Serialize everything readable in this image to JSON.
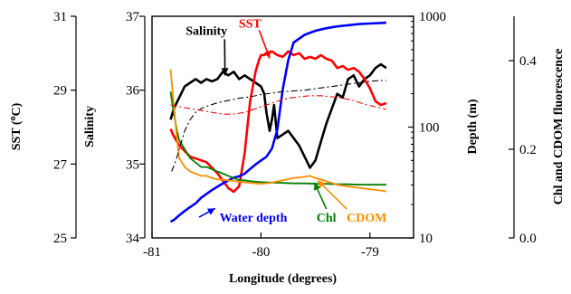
{
  "chart_data": {
    "type": "line",
    "xlabel": "Longitude (degrees)",
    "xlim": [
      -81,
      -78.6
    ],
    "x_ticks": [
      -81,
      -80,
      -79
    ],
    "x_tick_labels": [
      "-81",
      "-80",
      "-79"
    ],
    "axes": {
      "sst": {
        "label": "SST (°C)",
        "label_main": "SST (",
        "label_sup": "o",
        "label_end": "C)",
        "lim": [
          25,
          31
        ],
        "ticks": [
          25,
          27,
          29,
          31
        ],
        "tick_labels": [
          "25",
          "27",
          "29",
          "31"
        ]
      },
      "salinity": {
        "label": "Salinity",
        "lim": [
          34,
          37
        ],
        "ticks": [
          34,
          35,
          36,
          37
        ],
        "tick_labels": [
          "34",
          "35",
          "36",
          "37"
        ]
      },
      "depth": {
        "label": "Depth (m)",
        "scale": "log",
        "lim": [
          10,
          1000
        ],
        "ticks": [
          10,
          100,
          1000
        ],
        "tick_labels": [
          "10",
          "100",
          "1000"
        ]
      },
      "fluorescence": {
        "label": "Chl and CDOM fluorescence",
        "lim": [
          0,
          0.5
        ],
        "ticks": [
          0,
          0.2,
          0.4
        ],
        "tick_labels": [
          "0.0",
          "0.2",
          "0.4"
        ]
      }
    },
    "series": [
      {
        "name": "Salinity",
        "axis": "salinity",
        "color": "#000000",
        "style": "solid",
        "x": [
          -80.83,
          -80.8,
          -80.75,
          -80.7,
          -80.65,
          -80.6,
          -80.55,
          -80.5,
          -80.45,
          -80.4,
          -80.35,
          -80.3,
          -80.25,
          -80.2,
          -80.15,
          -80.1,
          -80.05,
          -80.0,
          -79.97,
          -79.95,
          -79.92,
          -79.9,
          -79.88,
          -79.85,
          -79.8,
          -79.75,
          -79.7,
          -79.65,
          -79.6,
          -79.55,
          -79.5,
          -79.45,
          -79.4,
          -79.35,
          -79.3,
          -79.25,
          -79.2,
          -79.15,
          -79.1,
          -79.05,
          -79.0,
          -78.95,
          -78.9,
          -78.85
        ],
        "y": [
          35.6,
          35.75,
          35.9,
          36.05,
          36.1,
          36.15,
          36.1,
          36.15,
          36.12,
          36.15,
          36.25,
          36.2,
          36.25,
          36.15,
          36.2,
          36.15,
          36.1,
          36.05,
          35.95,
          35.7,
          35.45,
          35.6,
          35.8,
          35.35,
          35.4,
          35.45,
          35.35,
          35.25,
          35.1,
          34.95,
          35.05,
          35.3,
          35.55,
          35.75,
          35.95,
          35.9,
          36.15,
          36.2,
          36.05,
          36.15,
          36.2,
          36.3,
          36.35,
          36.3
        ]
      },
      {
        "name": "SST",
        "axis": "sst",
        "color": "#ff0000",
        "style": "solid",
        "x": [
          -80.83,
          -80.8,
          -80.75,
          -80.7,
          -80.65,
          -80.6,
          -80.55,
          -80.5,
          -80.45,
          -80.4,
          -80.35,
          -80.3,
          -80.25,
          -80.2,
          -80.15,
          -80.1,
          -80.05,
          -80.02,
          -80.0,
          -79.97,
          -79.95,
          -79.9,
          -79.85,
          -79.8,
          -79.75,
          -79.7,
          -79.65,
          -79.6,
          -79.55,
          -79.5,
          -79.45,
          -79.4,
          -79.35,
          -79.3,
          -79.25,
          -79.2,
          -79.15,
          -79.1,
          -79.05,
          -79.0,
          -78.95,
          -78.9,
          -78.85
        ],
        "y": [
          27.95,
          27.75,
          27.5,
          27.35,
          27.2,
          27.15,
          27.1,
          27.05,
          26.9,
          26.75,
          26.55,
          26.35,
          26.25,
          26.4,
          27.3,
          28.7,
          29.5,
          29.8,
          29.95,
          29.95,
          30.0,
          30.05,
          29.95,
          29.9,
          30.05,
          29.95,
          30.0,
          29.85,
          29.9,
          29.85,
          29.95,
          29.85,
          29.8,
          29.6,
          29.65,
          29.55,
          29.6,
          29.5,
          29.3,
          29.05,
          28.7,
          28.6,
          28.65
        ]
      },
      {
        "name": "Water depth",
        "axis": "depth",
        "color": "#0000ff",
        "style": "solid",
        "x": [
          -80.83,
          -80.8,
          -80.75,
          -80.7,
          -80.65,
          -80.6,
          -80.55,
          -80.5,
          -80.45,
          -80.4,
          -80.35,
          -80.3,
          -80.25,
          -80.2,
          -80.15,
          -80.1,
          -80.05,
          -80.0,
          -79.95,
          -79.9,
          -79.85,
          -79.8,
          -79.75,
          -79.7,
          -79.6,
          -79.5,
          -79.4,
          -79.3,
          -79.2,
          -79.1,
          -79.0,
          -78.9,
          -78.85
        ],
        "y": [
          14,
          14.5,
          16,
          17.5,
          19,
          20.5,
          23,
          25,
          27,
          29,
          31,
          33,
          35,
          36,
          38,
          42,
          46,
          50,
          54,
          64,
          95,
          220,
          400,
          580,
          680,
          740,
          780,
          810,
          830,
          850,
          860,
          870,
          875
        ]
      },
      {
        "name": "Chl",
        "axis": "fluorescence",
        "color": "#008000",
        "style": "solid",
        "x": [
          -80.83,
          -80.8,
          -80.77,
          -80.75,
          -80.7,
          -80.65,
          -80.6,
          -80.55,
          -80.5,
          -80.45,
          -80.4,
          -80.35,
          -80.3,
          -80.25,
          -80.2,
          -80.15,
          -80.1,
          -80.0,
          -79.9,
          -79.8,
          -79.7,
          -79.6,
          -79.5,
          -79.4,
          -79.3,
          -79.2,
          -79.1,
          -79.0,
          -78.9,
          -78.85
        ],
        "y": [
          0.33,
          0.28,
          0.24,
          0.22,
          0.2,
          0.18,
          0.17,
          0.16,
          0.16,
          0.155,
          0.15,
          0.145,
          0.14,
          0.135,
          0.13,
          0.13,
          0.128,
          0.126,
          0.125,
          0.124,
          0.123,
          0.123,
          0.122,
          0.122,
          0.121,
          0.121,
          0.12,
          0.12,
          0.12,
          0.12
        ]
      },
      {
        "name": "CDOM",
        "axis": "fluorescence",
        "color": "#ff8c00",
        "style": "solid",
        "x": [
          -80.83,
          -80.8,
          -80.77,
          -80.75,
          -80.7,
          -80.65,
          -80.6,
          -80.55,
          -80.5,
          -80.45,
          -80.4,
          -80.3,
          -80.2,
          -80.1,
          -80.0,
          -79.9,
          -79.8,
          -79.7,
          -79.6,
          -79.55,
          -79.5,
          -79.4,
          -79.3,
          -79.2,
          -79.1,
          -79.0,
          -78.9,
          -78.85
        ],
        "y": [
          0.38,
          0.3,
          0.22,
          0.18,
          0.16,
          0.15,
          0.145,
          0.14,
          0.14,
          0.135,
          0.132,
          0.13,
          0.127,
          0.124,
          0.122,
          0.125,
          0.13,
          0.135,
          0.138,
          0.14,
          0.135,
          0.128,
          0.12,
          0.116,
          0.113,
          0.11,
          0.107,
          0.105
        ]
      },
      {
        "name": "",
        "axis": "salinity",
        "color": "#000000",
        "style": "dashed",
        "x": [
          -80.82,
          -80.78,
          -80.74,
          -80.7,
          -80.65,
          -80.6,
          -80.55,
          -80.5,
          -80.4,
          -80.3,
          -80.2,
          -80.1,
          -80.0,
          -79.9,
          -79.8,
          -79.7,
          -79.6,
          -79.5,
          -79.4,
          -79.3,
          -79.2,
          -79.1,
          -79.0,
          -78.9,
          -78.85
        ],
        "y": [
          34.9,
          35.05,
          35.25,
          35.45,
          35.6,
          35.7,
          35.75,
          35.78,
          35.83,
          35.86,
          35.89,
          35.91,
          35.94,
          35.96,
          35.98,
          35.99,
          36.0,
          36.02,
          36.04,
          36.06,
          36.08,
          36.1,
          36.12,
          36.13,
          36.13
        ]
      },
      {
        "name": "",
        "axis": "sst",
        "color": "#ff0000",
        "style": "dashed",
        "x": [
          -80.83,
          -80.75,
          -80.65,
          -80.55,
          -80.45,
          -80.35,
          -80.25,
          -80.15,
          -80.05,
          -79.95,
          -79.85,
          -79.75,
          -79.65,
          -79.55,
          -79.45,
          -79.35,
          -79.25,
          -79.15,
          -79.05,
          -78.95,
          -78.85
        ],
        "y": [
          28.6,
          28.55,
          28.5,
          28.45,
          28.4,
          28.35,
          28.35,
          28.4,
          28.5,
          28.6,
          28.7,
          28.78,
          28.82,
          28.85,
          28.85,
          28.82,
          28.78,
          28.72,
          28.62,
          28.55,
          28.48
        ]
      }
    ],
    "annotations": [
      {
        "text": "Salinity",
        "color": "#000000",
        "x": -80.5,
        "axis": "salinity",
        "y": 36.75
      },
      {
        "text": "SST",
        "color": "#ff0000",
        "x": -80.1,
        "axis": "salinity",
        "y": 36.85
      },
      {
        "text": "Water depth",
        "color": "#0000ff",
        "x": -80.07,
        "axis": "salinity",
        "y": 34.22
      },
      {
        "text": "Chl",
        "color": "#008000",
        "x": -79.4,
        "axis": "salinity",
        "y": 34.22
      },
      {
        "text": "CDOM",
        "color": "#ff8c00",
        "x": -79.03,
        "axis": "salinity",
        "y": 34.22
      }
    ]
  }
}
